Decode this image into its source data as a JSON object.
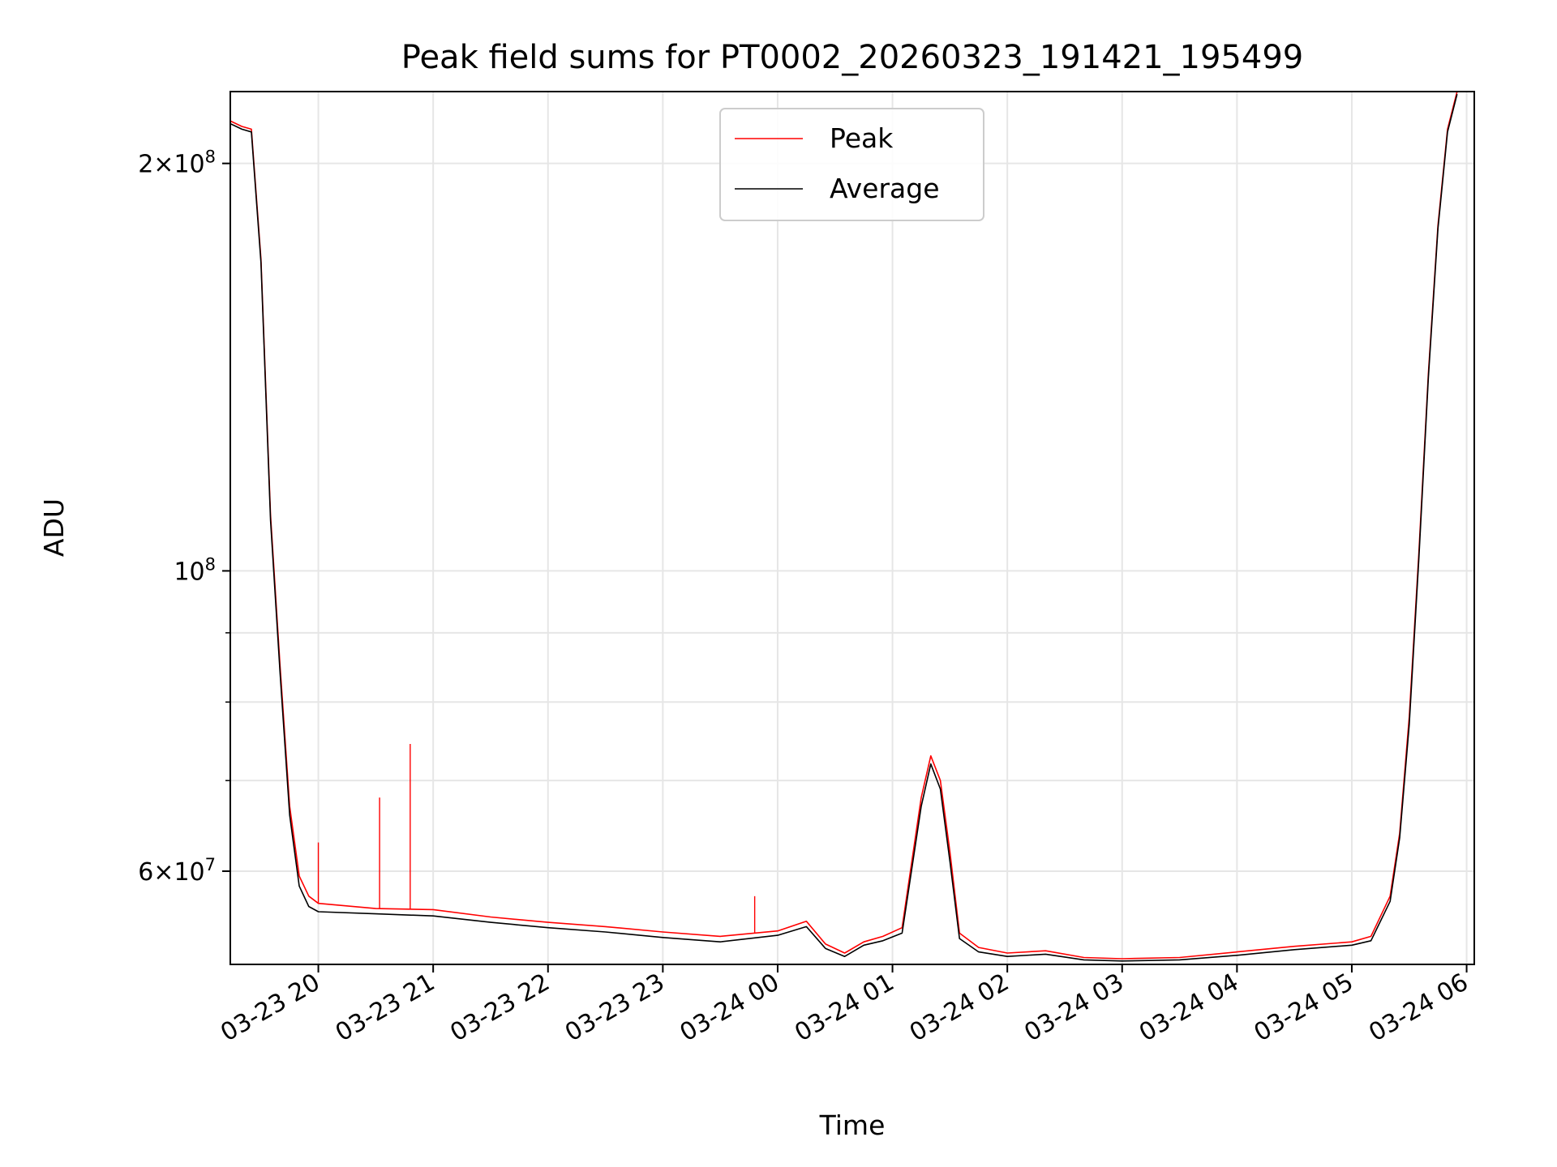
{
  "chart_data": {
    "type": "line",
    "title": "Peak field sums for PT0002_20260323_191421_195499",
    "xlabel": "Time",
    "ylabel": "ADU",
    "y_scale": "log",
    "xlim": [
      "2026-03-23 19:14",
      "2026-03-24 06:04"
    ],
    "ylim": [
      51200000,
      226000000
    ],
    "grid": true,
    "legend_position": "top-center",
    "x_ticks": [
      "03-23 20",
      "03-23 21",
      "03-23 22",
      "03-23 23",
      "03-24 00",
      "03-24 01",
      "03-24 02",
      "03-24 03",
      "03-24 04",
      "03-24 05",
      "03-24 06"
    ],
    "x_tick_times": [
      "2026-03-23 20:00",
      "2026-03-23 21:00",
      "2026-03-23 22:00",
      "2026-03-23 23:00",
      "2026-03-24 00:00",
      "2026-03-24 01:00",
      "2026-03-24 02:00",
      "2026-03-24 03:00",
      "2026-03-24 04:00",
      "2026-03-24 05:00",
      "2026-03-24 06:00"
    ],
    "y_ticks": [
      {
        "value": 60000000,
        "mantissa": "6",
        "exponent": "7"
      },
      {
        "value": 100000000,
        "mantissa": "",
        "exponent": "8"
      },
      {
        "value": 200000000,
        "mantissa": "2",
        "exponent": "8"
      }
    ],
    "y_minor_ticks": [
      70000000,
      80000000,
      90000000
    ],
    "series": [
      {
        "name": "Peak",
        "color": "#ff0000",
        "x": [
          "2026-03-23 19:14",
          "2026-03-23 19:20",
          "2026-03-23 19:25",
          "2026-03-23 19:30",
          "2026-03-23 19:35",
          "2026-03-23 19:40",
          "2026-03-23 19:45",
          "2026-03-23 19:50",
          "2026-03-23 19:55",
          "2026-03-23 20:00",
          "2026-03-23 20:30",
          "2026-03-23 21:00",
          "2026-03-23 21:30",
          "2026-03-23 22:00",
          "2026-03-23 22:30",
          "2026-03-23 23:00",
          "2026-03-23 23:30",
          "2026-03-24 00:00",
          "2026-03-24 00:15",
          "2026-03-24 00:25",
          "2026-03-24 00:35",
          "2026-03-24 00:45",
          "2026-03-24 00:55",
          "2026-03-24 01:05",
          "2026-03-24 01:15",
          "2026-03-24 01:20",
          "2026-03-24 01:25",
          "2026-03-24 01:30",
          "2026-03-24 01:35",
          "2026-03-24 01:45",
          "2026-03-24 02:00",
          "2026-03-24 02:20",
          "2026-03-24 02:40",
          "2026-03-24 03:00",
          "2026-03-24 03:30",
          "2026-03-24 04:00",
          "2026-03-24 04:30",
          "2026-03-24 05:00",
          "2026-03-24 05:10",
          "2026-03-24 05:20",
          "2026-03-24 05:25",
          "2026-03-24 05:30",
          "2026-03-24 05:35",
          "2026-03-24 05:40",
          "2026-03-24 05:45",
          "2026-03-24 05:50",
          "2026-03-24 05:55"
        ],
        "y": [
          215000000,
          213000000,
          212000000,
          170000000,
          110000000,
          85000000,
          67000000,
          59500000,
          57500000,
          56800000,
          56300000,
          56200000,
          55500000,
          55000000,
          54600000,
          54100000,
          53700000,
          54200000,
          55100000,
          53000000,
          52200000,
          53200000,
          53700000,
          54500000,
          68000000,
          73000000,
          70000000,
          62000000,
          54000000,
          52700000,
          52200000,
          52400000,
          51800000,
          51700000,
          51800000,
          52300000,
          52800000,
          53200000,
          53700000,
          57500000,
          64000000,
          78000000,
          103000000,
          140000000,
          180000000,
          212000000,
          226000000
        ],
        "spikes": [
          {
            "x": "2026-03-23 20:00",
            "y": 63000000
          },
          {
            "x": "2026-03-23 20:32",
            "y": 68000000
          },
          {
            "x": "2026-03-23 20:48",
            "y": 74500000
          },
          {
            "x": "2026-03-23 23:48",
            "y": 57500000
          }
        ]
      },
      {
        "name": "Average",
        "color": "#000000",
        "x": [
          "2026-03-23 19:14",
          "2026-03-23 19:20",
          "2026-03-23 19:25",
          "2026-03-23 19:30",
          "2026-03-23 19:35",
          "2026-03-23 19:40",
          "2026-03-23 19:45",
          "2026-03-23 19:50",
          "2026-03-23 19:55",
          "2026-03-23 20:00",
          "2026-03-23 20:30",
          "2026-03-23 21:00",
          "2026-03-23 21:30",
          "2026-03-23 22:00",
          "2026-03-23 22:30",
          "2026-03-23 23:00",
          "2026-03-23 23:30",
          "2026-03-24 00:00",
          "2026-03-24 00:15",
          "2026-03-24 00:25",
          "2026-03-24 00:35",
          "2026-03-24 00:45",
          "2026-03-24 00:55",
          "2026-03-24 01:05",
          "2026-03-24 01:15",
          "2026-03-24 01:20",
          "2026-03-24 01:25",
          "2026-03-24 01:30",
          "2026-03-24 01:35",
          "2026-03-24 01:45",
          "2026-03-24 02:00",
          "2026-03-24 02:20",
          "2026-03-24 02:40",
          "2026-03-24 03:00",
          "2026-03-24 03:30",
          "2026-03-24 04:00",
          "2026-03-24 04:30",
          "2026-03-24 05:00",
          "2026-03-24 05:10",
          "2026-03-24 05:20",
          "2026-03-24 05:25",
          "2026-03-24 05:30",
          "2026-03-24 05:35",
          "2026-03-24 05:40",
          "2026-03-24 05:45",
          "2026-03-24 05:50",
          "2026-03-24 05:55"
        ],
        "y": [
          214000000,
          212000000,
          211000000,
          169000000,
          109000000,
          84000000,
          66000000,
          58500000,
          56500000,
          56000000,
          55800000,
          55600000,
          55000000,
          54500000,
          54100000,
          53600000,
          53200000,
          53800000,
          54600000,
          52600000,
          51900000,
          52900000,
          53300000,
          54000000,
          67000000,
          72000000,
          69000000,
          61000000,
          53500000,
          52300000,
          51900000,
          52100000,
          51600000,
          51500000,
          51600000,
          52000000,
          52500000,
          52900000,
          53300000,
          57000000,
          63500000,
          77000000,
          102000000,
          139000000,
          179000000,
          211000000,
          225000000
        ]
      }
    ]
  }
}
